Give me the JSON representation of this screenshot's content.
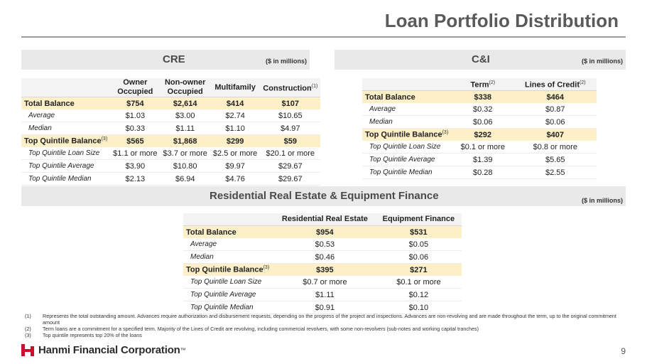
{
  "title": "Loan Portfolio Distribution",
  "cre": {
    "band_title": "CRE",
    "units": "($ in millions)",
    "columns": [
      "Owner Occupied",
      "Non-owner Occupied",
      "Multifamily",
      "Construction"
    ],
    "construction_sup": "(1)",
    "rows": [
      {
        "label": "Total Balance",
        "values": [
          "$754",
          "$2,614",
          "$414",
          "$107"
        ]
      },
      {
        "label": "Average",
        "values": [
          "$1.03",
          "$3.00",
          "$2.74",
          "$10.65"
        ]
      },
      {
        "label": "Median",
        "values": [
          "$0.33",
          "$1.11",
          "$1.10",
          "$4.97"
        ]
      },
      {
        "label": "Top Quintile Balance",
        "sup": "(3)",
        "values": [
          "$565",
          "$1,868",
          "$299",
          "$59"
        ]
      },
      {
        "label": "Top Quintile Loan Size",
        "values": [
          "$1.1 or more",
          "$3.7 or more",
          "$2.5 or more",
          "$20.1 or more"
        ]
      },
      {
        "label": "Top Quintile Average",
        "values": [
          "$3.90",
          "$10.80",
          "$9.97",
          "$29.67"
        ]
      },
      {
        "label": "Top Quintile Median",
        "values": [
          "$2.13",
          "$6.94",
          "$4.76",
          "$29.67"
        ]
      }
    ]
  },
  "ci": {
    "band_title": "C&I",
    "units": "($ in millions)",
    "columns": [
      "Term",
      "Lines of Credit"
    ],
    "term_sup": "(2)",
    "loc_sup": "(2)",
    "rows": [
      {
        "label": "Total Balance",
        "values": [
          "$338",
          "$464"
        ]
      },
      {
        "label": "Average",
        "values": [
          "$0.32",
          "$0.87"
        ]
      },
      {
        "label": "Median",
        "values": [
          "$0.06",
          "$0.06"
        ]
      },
      {
        "label": "Top Quintile Balance",
        "sup": "(3)",
        "values": [
          "$292",
          "$407"
        ]
      },
      {
        "label": "Top Quintile Loan Size",
        "values": [
          "$0.1 or more",
          "$0.8 or more"
        ]
      },
      {
        "label": "Top Quintile Average",
        "values": [
          "$1.39",
          "$5.65"
        ]
      },
      {
        "label": "Top Quintile Median",
        "values": [
          "$0.28",
          "$2.55"
        ]
      }
    ]
  },
  "rre": {
    "band_title": "Residential Real Estate & Equipment Finance",
    "units": "($ in millions)",
    "columns": [
      "Residential Real Estate",
      "Equipment Finance"
    ],
    "rows": [
      {
        "label": "Total Balance",
        "values": [
          "$954",
          "$531"
        ]
      },
      {
        "label": "Average",
        "values": [
          "$0.53",
          "$0.05"
        ]
      },
      {
        "label": "Median",
        "values": [
          "$0.46",
          "$0.06"
        ]
      },
      {
        "label": "Top Quintile Balance",
        "sup": "(3)",
        "values": [
          "$395",
          "$271"
        ]
      },
      {
        "label": "Top Quintile Loan Size",
        "values": [
          "$0.7 or more",
          "$0.1 or more"
        ]
      },
      {
        "label": "Top Quintile Average",
        "values": [
          "$1.11",
          "$0.12"
        ]
      },
      {
        "label": "Top Quintile Median",
        "values": [
          "$0.91",
          "$0.10"
        ]
      }
    ]
  },
  "notes": [
    {
      "num": "(1)",
      "text": "Represents the total outstanding amount. Advances require authorization and disbursement requests, depending on the progress of the project and inspections. Advances are non-revolving and are made throughout the term, up to the original commitment amount"
    },
    {
      "num": "(2)",
      "text": "Term loans are a commitment for a specified term. Majority of the Lines of Credit are revolving, including commercial revolvers, with some non-revolvers (sub-notes and working capital tranches)"
    },
    {
      "num": "(3)",
      "text": "Top quintile represents top 20% of the loans"
    }
  ],
  "footer": {
    "company": "Hanmi Financial Corporation",
    "trademark": "™",
    "page": "9",
    "brand_color": "#c8102e"
  }
}
